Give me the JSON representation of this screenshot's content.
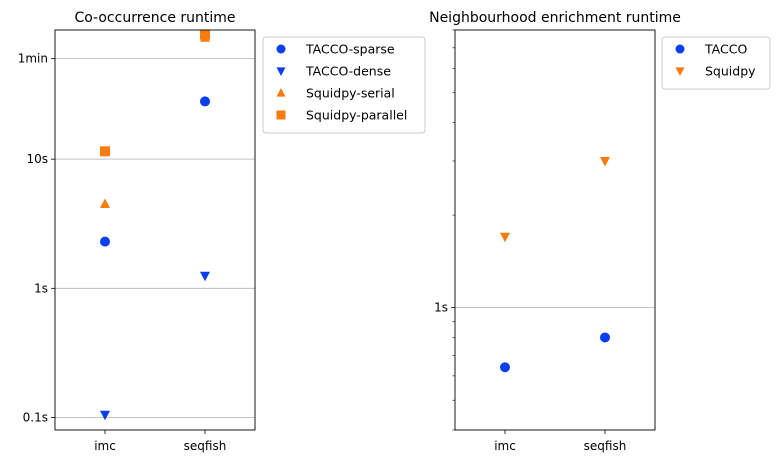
{
  "chart_data": [
    {
      "type": "scatter",
      "title": "Co-occurrence runtime",
      "xlabel": "",
      "ylabel": "",
      "yscale": "log",
      "categories": [
        "imc",
        "seqfish"
      ],
      "y_ticks": [
        {
          "value": 0.1,
          "label": "0.1s"
        },
        {
          "value": 1,
          "label": "1s"
        },
        {
          "value": 10,
          "label": "10s"
        },
        {
          "value": 60,
          "label": "1min"
        }
      ],
      "ylim": [
        0.08,
        100
      ],
      "grid": "horizontal at major ticks",
      "legend_position": "outside-top-right",
      "series": [
        {
          "name": "TACCO-sparse",
          "marker": "circle",
          "color": "#0a3ff0",
          "values": [
            2.3,
            28
          ]
        },
        {
          "name": "TACCO-dense",
          "marker": "triangle-down",
          "color": "#0a3ff0",
          "values": [
            0.105,
            1.25
          ]
        },
        {
          "name": "Squidpy-serial",
          "marker": "triangle-up",
          "color": "#f97b0d",
          "values": [
            4.5,
            87
          ]
        },
        {
          "name": "Squidpy-parallel",
          "marker": "square",
          "color": "#f97b0d",
          "values": [
            11.5,
            92
          ]
        }
      ]
    },
    {
      "type": "scatter",
      "title": "Neighbourhood enrichment runtime",
      "xlabel": "",
      "ylabel": "",
      "yscale": "log",
      "categories": [
        "imc",
        "seqfish"
      ],
      "y_ticks": [
        {
          "value": 1,
          "label": "1s"
        }
      ],
      "ylim": [
        0.4,
        8
      ],
      "grid": "horizontal at major ticks",
      "legend_position": "outside-top-right",
      "series": [
        {
          "name": "TACCO",
          "marker": "circle",
          "color": "#0a3ff0",
          "values": [
            0.64,
            0.8
          ]
        },
        {
          "name": "Squidpy",
          "marker": "triangle-down",
          "color": "#f97b0d",
          "values": [
            1.7,
            3.0
          ]
        }
      ]
    }
  ]
}
